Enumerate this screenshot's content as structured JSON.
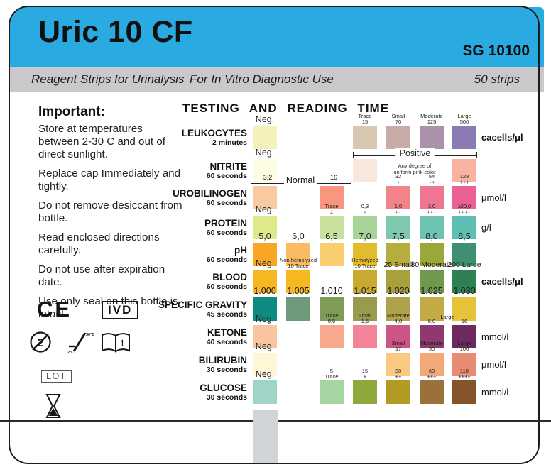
{
  "header": {
    "title": "Uric 10 CF",
    "code": "SG 10100"
  },
  "subheader": {
    "left": "Reagent Strips for Urinalysis",
    "center": "For In Vitro Diagnostic Use",
    "right": "50 strips"
  },
  "important": {
    "heading": "Important:",
    "notes": [
      "Store at temperatures between 2-30 C and out of direct sunlight.",
      "Replace cap Immediately and tightly.",
      "Do not remove desiccant from bottle.",
      "Read enclosed directions carefully.",
      "Do not use after expiration date.",
      "Use only seal on this bottle is intact."
    ]
  },
  "panel": {
    "title": "TESTING AND READING TIME",
    "rows": [
      {
        "name": "LEUKOCYTES",
        "time": "2 minutes",
        "unit": "cacells/μl",
        "unit_bold": true,
        "cells": [
          {
            "col": 1,
            "lines": [
              "Neg."
            ],
            "style": "neg",
            "color": "#f4f2ba"
          },
          {
            "col": 4,
            "lines": [
              "Trace",
              "15"
            ],
            "style": "small2",
            "color": "#d8c8b2"
          },
          {
            "col": 5,
            "lines": [
              "Small",
              "70"
            ],
            "style": "small2",
            "color": "#c6aba6"
          },
          {
            "col": 6,
            "lines": [
              "Moderate",
              "125"
            ],
            "style": "small2",
            "color": "#aa92ab"
          },
          {
            "col": 7,
            "lines": [
              "Large",
              "500"
            ],
            "style": "small2",
            "color": "#8b7ab3"
          }
        ]
      },
      {
        "name": "NITRITE",
        "time": "60 seconds",
        "unit": "",
        "unit_bold": false,
        "cells": [
          {
            "col": 1,
            "lines": [
              "Neg."
            ],
            "style": "neg",
            "color": "#fdfce4"
          },
          {
            "col": 4,
            "lines": [],
            "style": "none",
            "color": "#f8e7dc"
          },
          {
            "col": 7,
            "lines": [],
            "style": "none",
            "color": "#f8b3a3"
          }
        ]
      },
      {
        "name": "UROBILINOGEN",
        "time": "60 seconds",
        "unit": "μmol/l",
        "unit_bold": false,
        "cells": [
          {
            "col": 1,
            "lines": [],
            "style": "none",
            "color": "#f9caa2"
          },
          {
            "col": 3,
            "lines": [],
            "style": "none",
            "color": "#f89680"
          },
          {
            "col": 5,
            "lines": [
              "32",
              "+"
            ],
            "style": "small2",
            "color": "#f28389"
          },
          {
            "col": 6,
            "lines": [
              "64",
              "++"
            ],
            "style": "small2",
            "color": "#ef7590"
          },
          {
            "col": 7,
            "lines": [
              "128",
              "+++"
            ],
            "style": "small2",
            "color": "#ec6094"
          }
        ]
      },
      {
        "name": "PROTEIN",
        "time": "60 seconds",
        "unit": "g/l",
        "unit_bold": false,
        "cells": [
          {
            "col": 1,
            "lines": [
              "Neg."
            ],
            "style": "neg",
            "color": "#dfe98a"
          },
          {
            "col": 3,
            "lines": [
              "Trace",
              "±"
            ],
            "style": "small2",
            "color": "#c8e29e"
          },
          {
            "col": 4,
            "lines": [
              "0,3",
              "+"
            ],
            "style": "small2",
            "color": "#a7d298"
          },
          {
            "col": 5,
            "lines": [
              "1,0",
              "++"
            ],
            "style": "small2",
            "color": "#7fc8ad"
          },
          {
            "col": 6,
            "lines": [
              "3,0",
              "+++"
            ],
            "style": "small2",
            "color": "#6fc3b3"
          },
          {
            "col": 7,
            "lines": [
              "≥20,0",
              "++++"
            ],
            "style": "small2",
            "color": "#5fbeb3"
          }
        ]
      },
      {
        "name": "pH",
        "time": "60 seconds",
        "unit": "",
        "unit_bold": false,
        "cells": [
          {
            "col": 1,
            "lines": [
              "5,0"
            ],
            "style": "neg",
            "color": "#f7a723"
          },
          {
            "col": 2,
            "lines": [
              "6,0"
            ],
            "style": "neg",
            "color": "#f9bc63"
          },
          {
            "col": 3,
            "lines": [
              "6,5"
            ],
            "style": "neg",
            "color": "#f9ce6f"
          },
          {
            "col": 4,
            "lines": [
              "7,0"
            ],
            "style": "neg",
            "color": "#e2bd2b"
          },
          {
            "col": 5,
            "lines": [
              "7,5"
            ],
            "style": "neg",
            "color": "#b5ae3e"
          },
          {
            "col": 6,
            "lines": [
              "8,0"
            ],
            "style": "neg",
            "color": "#9ba737"
          },
          {
            "col": 7,
            "lines": [
              "8,5"
            ],
            "style": "neg",
            "color": "#3f9073"
          }
        ]
      },
      {
        "name": "BLOOD",
        "time": "60 seconds",
        "unit": "cacells/μl",
        "unit_bold": true,
        "cells": [
          {
            "col": 1,
            "lines": [
              "Neg."
            ],
            "style": "neg",
            "color": "#f6b820"
          },
          {
            "col": 2,
            "lines": [
              "Non hemolyzed",
              "10 Trace"
            ],
            "style": "small2",
            "color": "#f6b820",
            "speckled": true
          },
          {
            "col": 4,
            "lines": [
              "Hemolyzed",
              "10 Trace"
            ],
            "style": "small2",
            "color": "#c9a930"
          },
          {
            "col": 5,
            "lines": [
              "25 Small"
            ],
            "style": "mid",
            "color": "#a8a03d"
          },
          {
            "col": 6,
            "lines": [
              "80 Moderate"
            ],
            "style": "mid",
            "color": "#71994e"
          },
          {
            "col": 7,
            "lines": [
              "200 Large"
            ],
            "style": "mid",
            "color": "#2f8153"
          }
        ]
      },
      {
        "name": "SPECIFIC GRAVITY",
        "time": "45 seconds",
        "unit": "",
        "unit_bold": false,
        "cells": [
          {
            "col": 1,
            "lines": [
              "1.000"
            ],
            "style": "neg",
            "color": "#0f8a80"
          },
          {
            "col": 2,
            "lines": [
              "1.005"
            ],
            "style": "neg",
            "color": "#6f9a79"
          },
          {
            "col": 3,
            "lines": [
              "1.010"
            ],
            "style": "neg",
            "color": "#7f9b58"
          },
          {
            "col": 4,
            "lines": [
              "1.015"
            ],
            "style": "neg",
            "color": "#989a4d"
          },
          {
            "col": 5,
            "lines": [
              "1.020"
            ],
            "style": "neg",
            "color": "#aea34a"
          },
          {
            "col": 6,
            "lines": [
              "1.025"
            ],
            "style": "neg",
            "color": "#c3aa45"
          },
          {
            "col": 7,
            "lines": [
              "1.030"
            ],
            "style": "neg",
            "color": "#e7c339"
          }
        ]
      },
      {
        "name": "KETONE",
        "time": "40 seconds",
        "unit": "mmol/l",
        "unit_bold": false,
        "cells": [
          {
            "col": 1,
            "lines": [
              "Neg."
            ],
            "style": "neg",
            "color": "#f9c5a1"
          },
          {
            "col": 3,
            "lines": [
              "Trace",
              "0,5"
            ],
            "style": "small2",
            "color": "#f8a88d"
          },
          {
            "col": 4,
            "lines": [
              "Small",
              "1,5"
            ],
            "style": "small2",
            "color": "#f28499"
          },
          {
            "col": 5,
            "lines": [
              "Moderate",
              "4,0"
            ],
            "style": "small2",
            "color": "#cc5486"
          },
          {
            "col": 6,
            "lines": [
              "8,0"
            ],
            "style": "small1",
            "color": "#8e3a70"
          },
          {
            "col": 7,
            "lines": [
              "16"
            ],
            "style": "small1",
            "color": "#6d2a5e"
          }
        ]
      },
      {
        "name": "BILIRUBIN",
        "time": "30 seconds",
        "unit": "μmol/l",
        "unit_bold": false,
        "cells": [
          {
            "col": 1,
            "lines": [
              "Neg."
            ],
            "style": "neg",
            "color": "#fdf7d8"
          },
          {
            "col": 5,
            "lines": [
              "Small",
              "17"
            ],
            "style": "small2",
            "color": "#f9ca7f"
          },
          {
            "col": 6,
            "lines": [
              "Moderate",
              "50"
            ],
            "style": "small2",
            "color": "#f2a877"
          },
          {
            "col": 7,
            "lines": [
              "Large",
              "100"
            ],
            "style": "small2",
            "color": "#e78b72"
          }
        ]
      },
      {
        "name": "GLUCOSE",
        "time": "30 seconds",
        "unit": "mmol/l",
        "unit_bold": false,
        "cells": [
          {
            "col": 1,
            "lines": [
              "Neg."
            ],
            "style": "neg",
            "color": "#9ed5c8"
          },
          {
            "col": 3,
            "lines": [
              "5",
              "Trace"
            ],
            "style": "small2",
            "color": "#a5d5a1"
          },
          {
            "col": 4,
            "lines": [
              "15",
              "+"
            ],
            "style": "small2",
            "color": "#8fa83e"
          },
          {
            "col": 5,
            "lines": [
              "30",
              "++"
            ],
            "style": "small2",
            "color": "#b29b22"
          },
          {
            "col": 6,
            "lines": [
              "60",
              "+++"
            ],
            "style": "small2",
            "color": "#9a713c"
          },
          {
            "col": 7,
            "lines": [
              "110",
              "++++"
            ],
            "style": "small2",
            "color": "#84552a"
          }
        ]
      }
    ],
    "overlays": {
      "nitrite_positive": "Positive",
      "nitrite_note1": "Any degree of",
      "nitrite_note2": "uniform pink color",
      "urobilinogen_low": "3,2",
      "urobilinogen_mid": "Normal",
      "urobilinogen_high": "16",
      "ketone_span": "Large"
    }
  },
  "symbols": {
    "ce": "CE",
    "ivd": "IVD",
    "do_not_reuse": "2",
    "consult_instructions": "i",
    "lot": "LOT"
  },
  "colors": {
    "header_blue": "#29aae1",
    "subheader_gray": "#c9c9cb",
    "strip_gray": "#d2d5d7"
  }
}
